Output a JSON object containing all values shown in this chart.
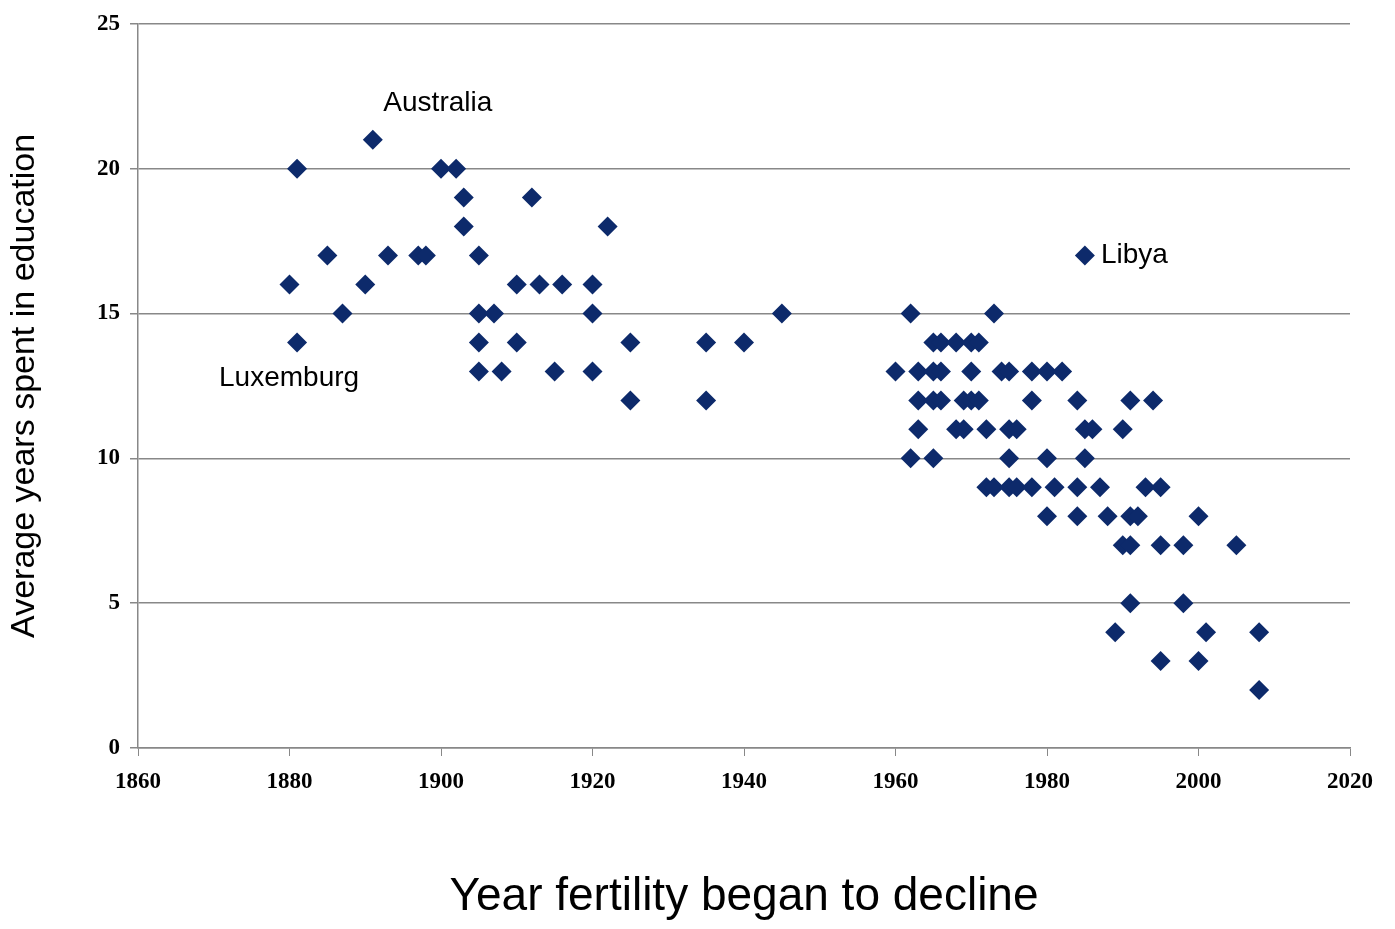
{
  "chart_data": {
    "type": "scatter",
    "xlabel": "Year fertility began to decline",
    "ylabel": "Average years spent in education",
    "x": [
      1880,
      1881,
      1881,
      1885,
      1887,
      1890,
      1891,
      1893,
      1897,
      1898,
      1900,
      1902,
      1903,
      1903,
      1905,
      1905,
      1905,
      1905,
      1907,
      1908,
      1910,
      1910,
      1912,
      1913,
      1915,
      1916,
      1920,
      1920,
      1920,
      1922,
      1925,
      1925,
      1935,
      1935,
      1940,
      1945,
      1962,
      1973,
      1965,
      1966,
      1968,
      1970,
      1971,
      1960,
      1963,
      1965,
      1966,
      1970,
      1974,
      1975,
      1978,
      1980,
      1982,
      1963,
      1965,
      1966,
      1969,
      1970,
      1971,
      1978,
      1984,
      1991,
      1994,
      1963,
      1968,
      1969,
      1972,
      1975,
      1976,
      1985,
      1986,
      1990,
      1962,
      1965,
      1975,
      1980,
      1985,
      1972,
      1973,
      1975,
      1976,
      1978,
      1981,
      1984,
      1987,
      1993,
      1995,
      1980,
      1984,
      1988,
      1991,
      1992,
      2000,
      1990,
      1991,
      1995,
      1998,
      2005,
      1991,
      1998,
      1989,
      2001,
      2008,
      1995,
      2000,
      2008,
      1985
    ],
    "values": [
      16,
      20,
      14,
      17,
      15,
      16,
      21,
      17,
      17,
      17,
      20,
      20,
      19,
      18,
      17,
      15,
      14,
      13,
      15,
      13,
      16,
      14,
      19,
      16,
      13,
      16,
      16,
      15,
      13,
      18,
      14,
      12,
      14,
      12,
      14,
      15,
      15,
      15,
      14,
      14,
      14,
      14,
      14,
      13,
      13,
      13,
      13,
      13,
      13,
      13,
      13,
      13,
      13,
      12,
      12,
      12,
      12,
      12,
      12,
      12,
      12,
      12,
      12,
      11,
      11,
      11,
      11,
      11,
      11,
      11,
      11,
      11,
      10,
      10,
      10,
      10,
      10,
      9,
      9,
      9,
      9,
      9,
      9,
      9,
      9,
      9,
      9,
      8,
      8,
      8,
      8,
      8,
      8,
      7,
      7,
      7,
      7,
      7,
      5,
      5,
      4,
      4,
      4,
      3,
      3,
      2,
      17
    ],
    "color": "#0d2a6b",
    "marker": "diamond",
    "grid": "y",
    "xlim": [
      1860,
      2020
    ],
    "xticks": [
      1860,
      1880,
      1900,
      1920,
      1940,
      1960,
      1980,
      2000,
      2020
    ],
    "ylim": [
      0,
      25
    ],
    "yticks": [
      0,
      5,
      10,
      15,
      20,
      25
    ],
    "annotations": [
      {
        "text": "Australia",
        "x": 1891,
        "y": 21
      },
      {
        "text": "Libya",
        "x": 1985,
        "y": 17
      },
      {
        "text": "Luxemburg",
        "x": 1881,
        "y": 14
      }
    ]
  }
}
